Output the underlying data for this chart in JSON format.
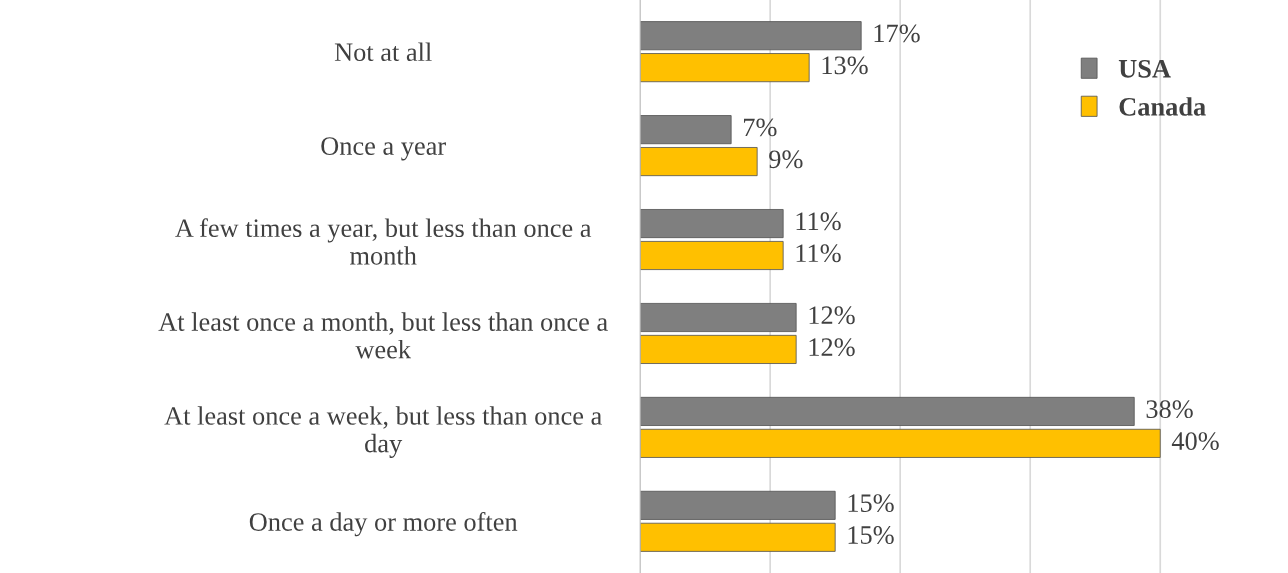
{
  "chart_data": {
    "type": "bar",
    "orientation": "horizontal",
    "categories": [
      "Not at all",
      "Once a year",
      "A few times a year, but less than once a\nmonth",
      "At least once a month, but less than once a\nweek",
      "At least once a week, but less than once a\nday",
      "Once a day or more often"
    ],
    "series": [
      {
        "name": "USA",
        "color": "#7f7f7f",
        "values": [
          17,
          7,
          11,
          12,
          38,
          15
        ],
        "value_labels": [
          "17%",
          "7%",
          "11%",
          "12%",
          "38%",
          "15%"
        ]
      },
      {
        "name": "Canada",
        "color": "#ffc000",
        "values": [
          13,
          9,
          11,
          12,
          40,
          15
        ],
        "value_labels": [
          "13%",
          "9%",
          "11%",
          "12%",
          "40%",
          "15%"
        ]
      }
    ],
    "xticks": [
      {
        "value": 0,
        "label": null
      },
      {
        "value": 10,
        "label": null
      },
      {
        "value": 20,
        "label": null
      },
      {
        "value": 30,
        "label": null
      },
      {
        "value": 40,
        "label": null
      }
    ],
    "grid": "x",
    "legend": "top right",
    "tick_labels": "y"
  }
}
